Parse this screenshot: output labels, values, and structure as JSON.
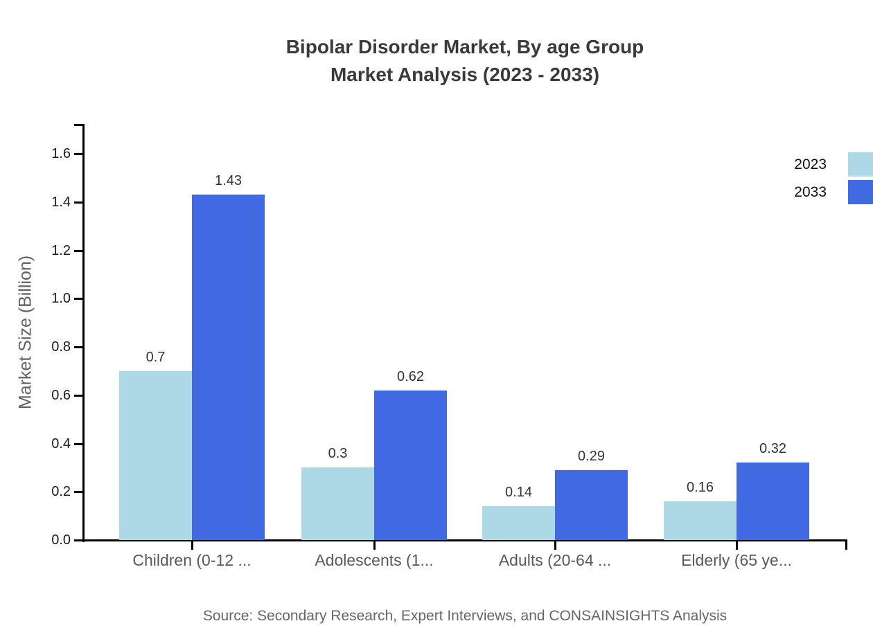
{
  "title": {
    "line1": "Bipolar Disorder Market, By age Group",
    "line2": "Market Analysis (2023 - 2033)"
  },
  "legend": {
    "items": [
      {
        "label": "2023",
        "color": "#ADD8E6"
      },
      {
        "label": "2033",
        "color": "#4169E1"
      }
    ]
  },
  "source": {
    "text": "Source: Secondary Research, Expert Interviews, and CONSAINSIGHTS Analysis"
  },
  "chart_data": {
    "type": "bar",
    "title": "Bipolar Disorder Market, By age Group Market Analysis (2023 - 2033)",
    "categories": [
      "Children (0-12 ...",
      "Adolescents (1...",
      "Adults (20-64 ...",
      "Elderly (65 ye..."
    ],
    "series": [
      {
        "name": "2023",
        "color": "#ADD8E6",
        "values": [
          0.7,
          0.3,
          0.14,
          0.16
        ]
      },
      {
        "name": "2033",
        "color": "#4169E1",
        "values": [
          1.43,
          0.62,
          0.29,
          0.32
        ]
      }
    ],
    "xlabel": "",
    "ylabel": "Market Size (Billion)",
    "yticks": [
      "0.0",
      "0.2",
      "0.4",
      "0.6",
      "0.8",
      "1.0",
      "1.2",
      "1.4",
      "1.6"
    ],
    "ylim": [
      0,
      1.72
    ],
    "grid": false,
    "legend_position": "top-right",
    "value_labels": true
  }
}
